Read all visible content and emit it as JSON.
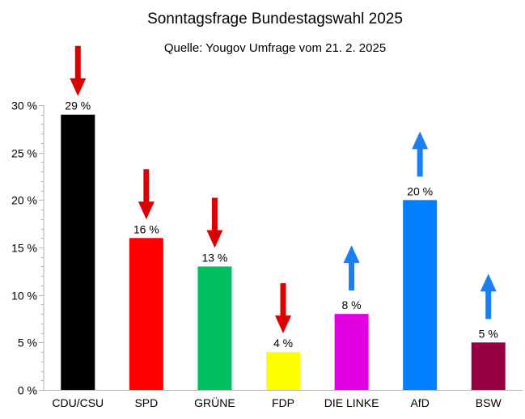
{
  "chart_data": {
    "type": "bar",
    "title": "Sonntagsfrage Bundestagswahl 2025",
    "subtitle": "Quelle: Yougov Umfrage vom 21. 2. 2025",
    "xlabel": "",
    "ylabel": "",
    "ylim": [
      0,
      30
    ],
    "yticks": [
      0,
      5,
      10,
      15,
      20,
      25,
      30
    ],
    "ytick_labels": [
      "0 %",
      "5 %",
      "10 %",
      "15 %",
      "20 %",
      "25 %",
      "30 %"
    ],
    "grid": false,
    "legend": "none",
    "categories": [
      "CDU/CSU",
      "SPD",
      "GRÜNE",
      "FDP",
      "DIE LINKE",
      "AfD",
      "BSW"
    ],
    "values": [
      29,
      16,
      13,
      4,
      8,
      20,
      5
    ],
    "value_labels": [
      "29 %",
      "16 %",
      "13 %",
      "4 %",
      "8 %",
      "20 %",
      "5 %"
    ],
    "colors": [
      "#000000",
      "#ff0000",
      "#00c060",
      "#ffff00",
      "#e000e0",
      "#0080ff",
      "#990044"
    ],
    "trend_arrows": [
      "down",
      "down",
      "down",
      "down",
      "up",
      "up",
      "up"
    ],
    "arrow_colors": {
      "down": "#dd0000",
      "up": "#1a7ff0"
    }
  }
}
